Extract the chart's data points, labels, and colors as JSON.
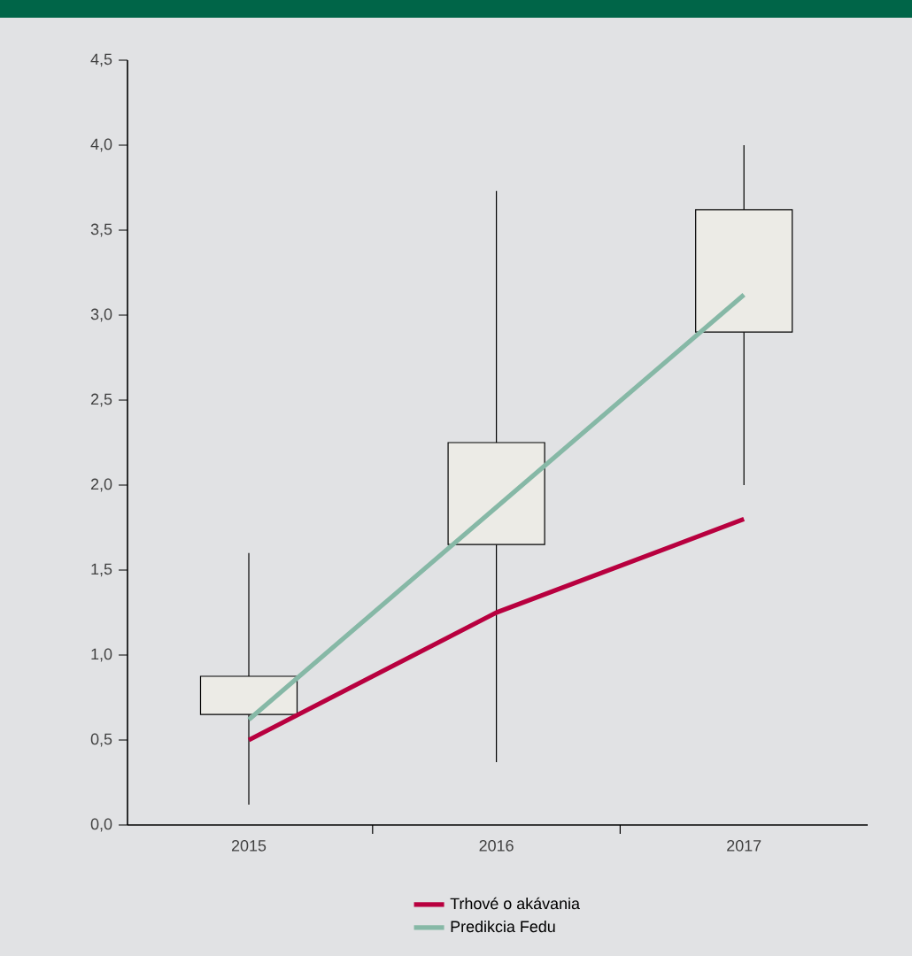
{
  "chart_data": {
    "type": "candlestick",
    "categories": [
      "2015",
      "2016",
      "2017"
    ],
    "ohlc": [
      [
        0.65,
        1.6,
        0.12,
        0.875
      ],
      [
        1.65,
        3.73,
        0.37,
        2.25
      ],
      [
        2.9,
        4.0,
        2.0,
        3.62
      ]
    ],
    "color": "#ecebe6",
    "series": [
      {
        "name": "Trhové o akávania",
        "type": "line",
        "color": "#b8003f",
        "values": [
          0.5,
          1.25,
          1.8
        ]
      },
      {
        "name": "Predikcia Fedu",
        "type": "line",
        "color": "#86b8a6",
        "values": [
          0.62,
          1.87,
          3.12
        ]
      }
    ],
    "ylim": [
      0,
      4.5
    ],
    "yticks": [
      {
        "value": 0,
        "label": "0,0"
      },
      {
        "value": 0.5,
        "label": "0,5"
      },
      {
        "value": 1,
        "label": "1,0"
      },
      {
        "value": 1.5,
        "label": "1,5"
      },
      {
        "value": 2,
        "label": "2,0"
      },
      {
        "value": 2.5,
        "label": "2,5"
      },
      {
        "value": 3,
        "label": "3,0"
      },
      {
        "value": 3.5,
        "label": "3,5"
      },
      {
        "value": 4,
        "label": "4,0"
      },
      {
        "value": 4.5,
        "label": "4,5"
      }
    ],
    "legend": "bottom",
    "grid": false,
    "marker": "none",
    "line_style": "solid"
  }
}
